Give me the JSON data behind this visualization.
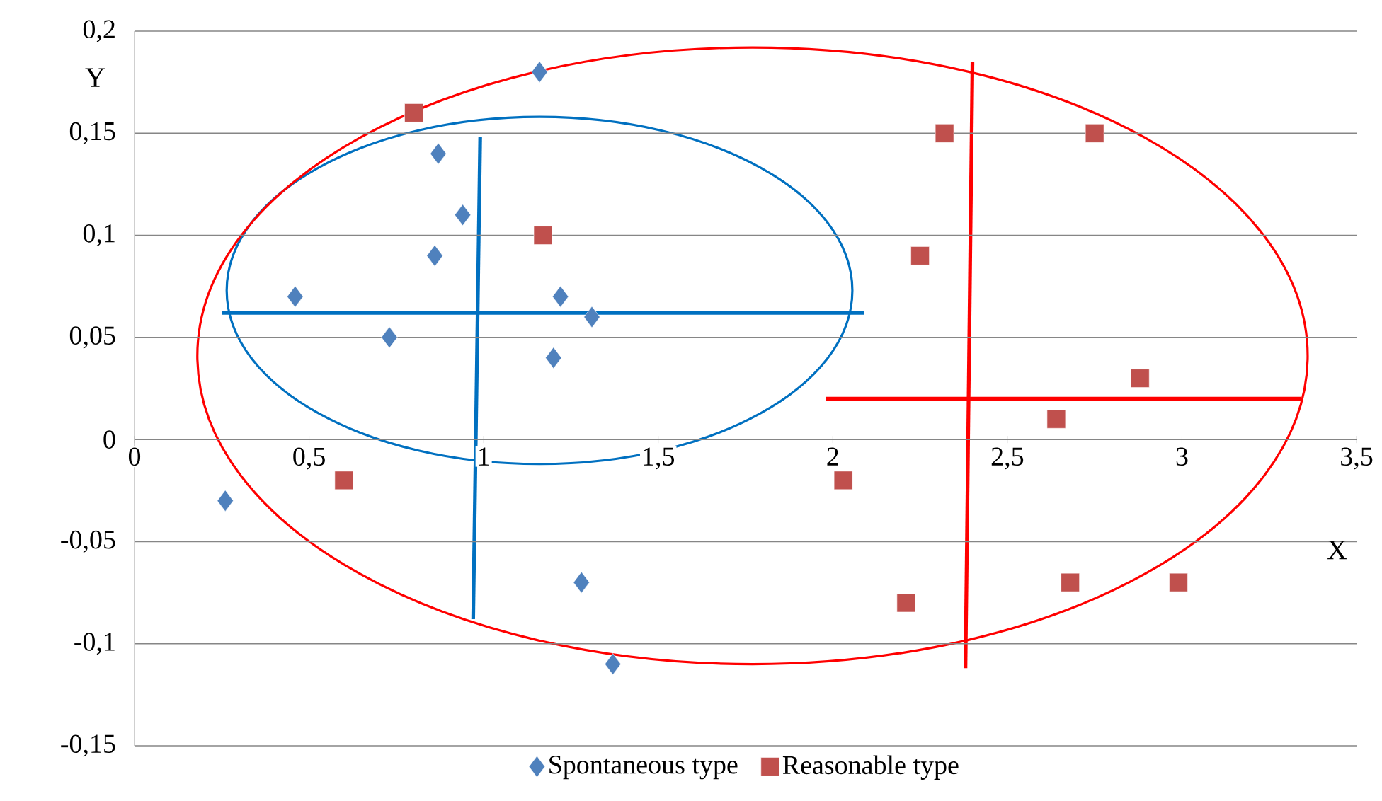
{
  "chart_data": {
    "type": "scatter",
    "xlabel": "X",
    "ylabel": "Y",
    "xlim": [
      0,
      3.5
    ],
    "ylim": [
      -0.15,
      0.2
    ],
    "xticks": [
      0,
      {
        "value": 0.5,
        "label": "0,5"
      },
      1,
      {
        "value": 1.5,
        "label": "1,5"
      },
      2,
      {
        "value": 2.5,
        "label": "2,5"
      },
      3,
      {
        "value": 3.5,
        "label": "3,5"
      }
    ],
    "yticks": [
      {
        "value": -0.15,
        "label": "-0,15"
      },
      {
        "value": -0.1,
        "label": "-0,1"
      },
      {
        "value": -0.05,
        "label": "-0,05"
      },
      0,
      {
        "value": 0.05,
        "label": "0,05"
      },
      {
        "value": 0.1,
        "label": "0,1"
      },
      {
        "value": 0.15,
        "label": "0,15"
      },
      {
        "value": 0.2,
        "label": "0,2"
      }
    ],
    "grid": "y",
    "legend": "bottom",
    "series": [
      {
        "name": "Spontaneous type",
        "color": "#4f81bd",
        "marker": "diamond",
        "x": [
          0.26,
          0.46,
          0.73,
          0.87,
          0.86,
          0.94,
          1.16,
          1.22,
          1.2,
          1.31,
          1.28,
          1.37
        ],
        "values": [
          -0.03,
          0.07,
          0.05,
          0.14,
          0.09,
          0.11,
          0.18,
          0.07,
          0.04,
          0.06,
          -0.07,
          -0.11
        ]
      },
      {
        "name": "Reasonable type",
        "color": "#c0504d",
        "marker": "square",
        "x": [
          0.8,
          1.17,
          0.6,
          2.03,
          2.32,
          2.25,
          2.75,
          2.88,
          2.64,
          2.21,
          2.68,
          2.99
        ],
        "values": [
          0.16,
          0.1,
          -0.02,
          -0.02,
          0.15,
          0.09,
          0.15,
          0.03,
          0.01,
          -0.08,
          -0.07,
          -0.07
        ]
      },
      {
        "type": "line",
        "color": "#0070c0",
        "marker": "none",
        "x": [
          0.25,
          2.09
        ],
        "values": [
          0.062,
          0.062
        ]
      },
      {
        "type": "line",
        "color": "#0070c0",
        "marker": "none",
        "x": [
          0.99,
          0.97
        ],
        "values": [
          0.148,
          -0.088
        ]
      },
      {
        "type": "line",
        "color": "#ff0000",
        "marker": "none",
        "x": [
          1.98,
          3.34
        ],
        "values": [
          0.02,
          0.02
        ]
      },
      {
        "type": "line",
        "color": "#ff0000",
        "marker": "none",
        "x": [
          2.4,
          2.38
        ],
        "values": [
          0.185,
          -0.112
        ]
      }
    ]
  }
}
